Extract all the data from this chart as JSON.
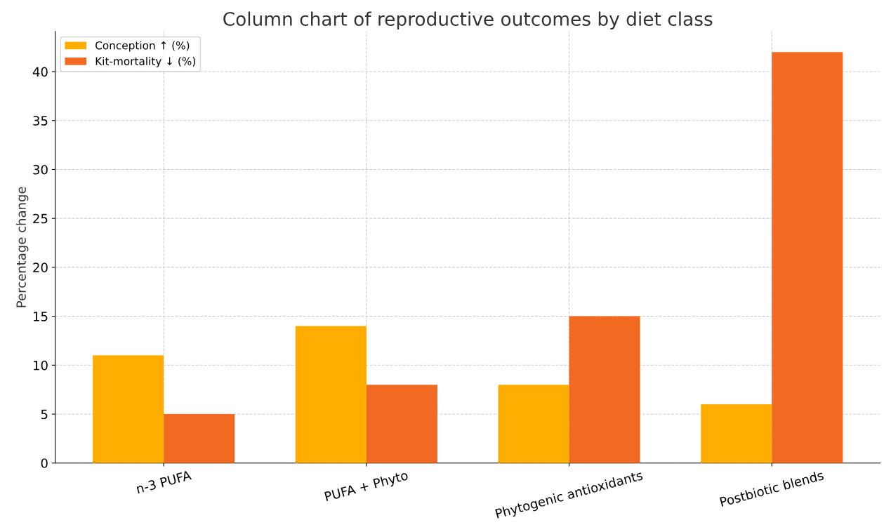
{
  "chart_data": {
    "type": "bar",
    "title": "Column chart of reproductive outcomes by diet class",
    "ylabel": "Percentage change",
    "categories": [
      "n-3 PUFA",
      "PUFA + Phyto",
      "Phytogenic antioxidants",
      "Postbiotic blends"
    ],
    "series": [
      {
        "name": "Conception ↑ (%)",
        "color": "#ffad00",
        "values": [
          11,
          14,
          8,
          6
        ]
      },
      {
        "name": "Kit-mortality ↓ (%)",
        "color": "#f26a22",
        "values": [
          5,
          8,
          15,
          42
        ]
      }
    ],
    "ylim": [
      0,
      44.1
    ],
    "yticks": [
      0,
      5,
      10,
      15,
      20,
      25,
      30,
      35,
      40
    ],
    "grid": true,
    "legend": "top left"
  }
}
